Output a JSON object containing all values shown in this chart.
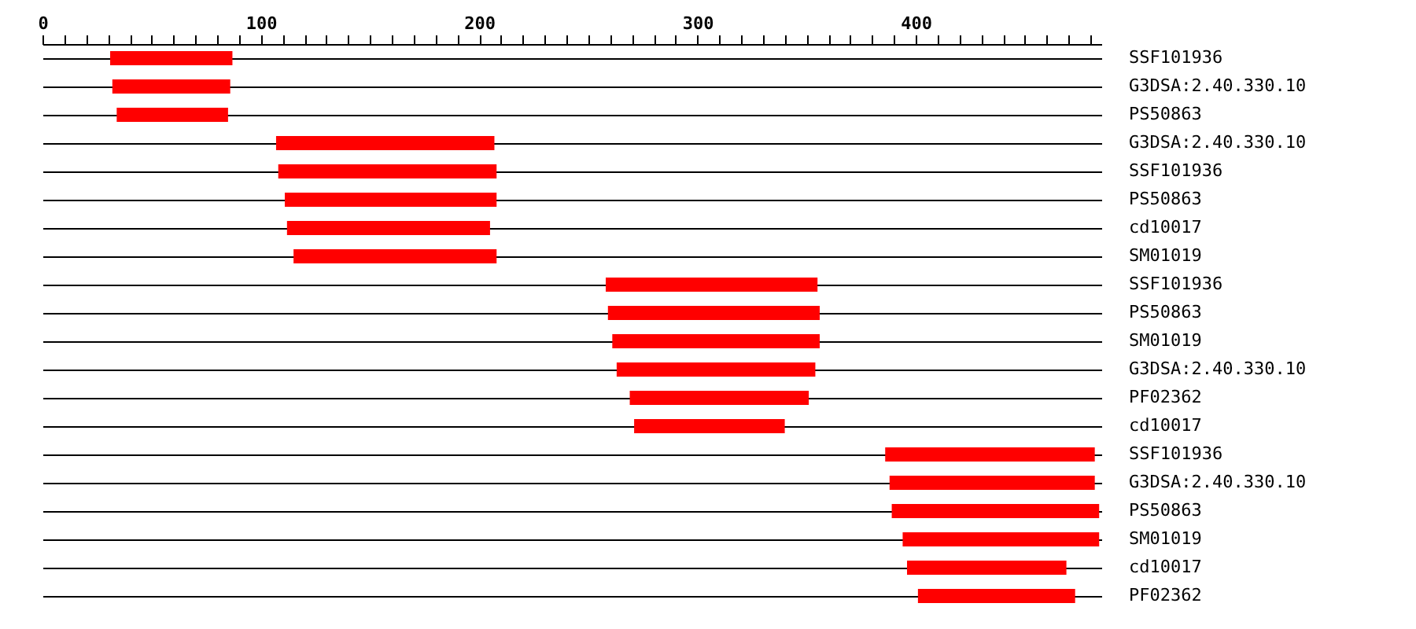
{
  "chart_data": {
    "type": "bar",
    "orientation": "horizontal",
    "categories": [
      "SSF101936",
      "G3DSA:2.40.330.10",
      "PS50863",
      "G3DSA:2.40.330.10",
      "SSF101936",
      "PS50863",
      "cd10017",
      "SM01019",
      "SSF101936",
      "PS50863",
      "SM01019",
      "G3DSA:2.40.330.10",
      "PF02362",
      "cd10017",
      "SSF101936",
      "G3DSA:2.40.330.10",
      "PS50863",
      "SM01019",
      "cd10017",
      "PF02362"
    ],
    "base": [
      31,
      32,
      34,
      107,
      108,
      111,
      112,
      115,
      258,
      259,
      261,
      263,
      269,
      271,
      386,
      388,
      389,
      394,
      396,
      401
    ],
    "values": [
      56,
      54,
      51,
      100,
      100,
      97,
      93,
      93,
      97,
      97,
      95,
      91,
      82,
      69,
      96,
      94,
      95,
      90,
      73,
      72
    ],
    "color": "#ff0000",
    "grid": "y",
    "xlim": [
      0,
      485
    ],
    "xticks": [
      0,
      {
        "value": 10,
        "label": null
      },
      {
        "value": 20,
        "label": null
      },
      {
        "value": 30,
        "label": null
      },
      {
        "value": 40,
        "label": null
      },
      {
        "value": 50,
        "label": null
      },
      {
        "value": 60,
        "label": null
      },
      {
        "value": 70,
        "label": null
      },
      {
        "value": 80,
        "label": null
      },
      {
        "value": 90,
        "label": null
      },
      100,
      {
        "value": 110,
        "label": null
      },
      {
        "value": 120,
        "label": null
      },
      {
        "value": 130,
        "label": null
      },
      {
        "value": 140,
        "label": null
      },
      {
        "value": 150,
        "label": null
      },
      {
        "value": 160,
        "label": null
      },
      {
        "value": 170,
        "label": null
      },
      {
        "value": 180,
        "label": null
      },
      {
        "value": 190,
        "label": null
      },
      200,
      {
        "value": 210,
        "label": null
      },
      {
        "value": 220,
        "label": null
      },
      {
        "value": 230,
        "label": null
      },
      {
        "value": 240,
        "label": null
      },
      {
        "value": 250,
        "label": null
      },
      {
        "value": 260,
        "label": null
      },
      {
        "value": 270,
        "label": null
      },
      {
        "value": 280,
        "label": null
      },
      {
        "value": 290,
        "label": null
      },
      300,
      {
        "value": 310,
        "label": null
      },
      {
        "value": 320,
        "label": null
      },
      {
        "value": 330,
        "label": null
      },
      {
        "value": 340,
        "label": null
      },
      {
        "value": 350,
        "label": null
      },
      {
        "value": 360,
        "label": null
      },
      {
        "value": 370,
        "label": null
      },
      {
        "value": 380,
        "label": null
      },
      {
        "value": 390,
        "label": null
      },
      400,
      {
        "value": 410,
        "label": null
      },
      {
        "value": 420,
        "label": null
      },
      {
        "value": 430,
        "label": null
      },
      {
        "value": 440,
        "label": null
      },
      {
        "value": 450,
        "label": null
      },
      {
        "value": 460,
        "label": null
      },
      {
        "value": 470,
        "label": null
      },
      {
        "value": 480,
        "label": null
      }
    ]
  }
}
